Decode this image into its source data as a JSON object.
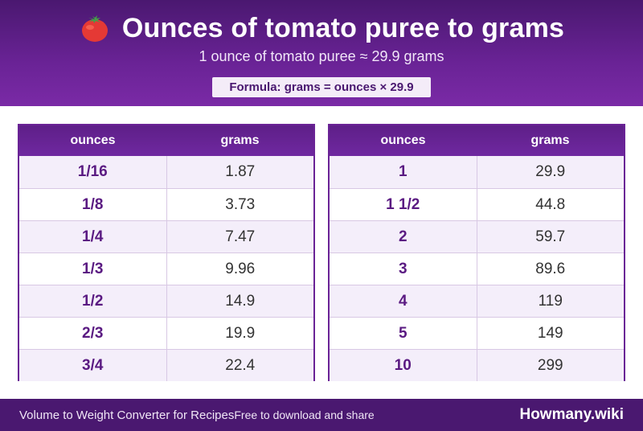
{
  "header": {
    "icon": "tomato-icon",
    "title": "Ounces of tomato puree to grams",
    "subtitle": "1 ounce of tomato puree ≈ 29.9 grams",
    "formula": "Formula: grams = ounces × 29.9"
  },
  "tables": [
    {
      "headers": [
        "ounces",
        "grams"
      ],
      "rows": [
        [
          "1/16",
          "1.87"
        ],
        [
          "1/8",
          "3.73"
        ],
        [
          "1/4",
          "7.47"
        ],
        [
          "1/3",
          "9.96"
        ],
        [
          "1/2",
          "14.9"
        ],
        [
          "2/3",
          "19.9"
        ],
        [
          "3/4",
          "22.4"
        ]
      ]
    },
    {
      "headers": [
        "ounces",
        "grams"
      ],
      "rows": [
        [
          "1",
          "29.9"
        ],
        [
          "1 1/2",
          "44.8"
        ],
        [
          "2",
          "59.7"
        ],
        [
          "3",
          "89.6"
        ],
        [
          "4",
          "119"
        ],
        [
          "5",
          "149"
        ],
        [
          "10",
          "299"
        ]
      ]
    }
  ],
  "footer": {
    "left": "Volume to Weight Converter for Recipes",
    "middle": "Free to download and share",
    "brand": "Howmany.wiki"
  },
  "colors": {
    "header_bg": "#6a2396",
    "accent": "#5a1a82",
    "footer_bg": "#4a1870"
  }
}
